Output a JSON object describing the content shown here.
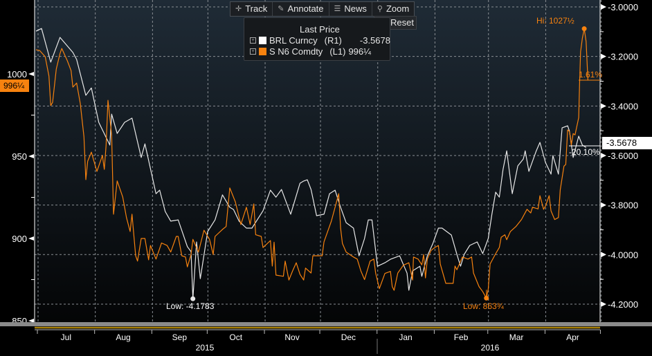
{
  "toolbar": {
    "track": "Track",
    "annotate": "Annotate",
    "news": "News",
    "zoom": "Zoom",
    "reset": "Reset"
  },
  "legend": {
    "title": "Last Price",
    "rows": [
      {
        "name": "BRL Curncy",
        "axis": "(R1)",
        "value": "-3.5678",
        "color": "#ffffff"
      },
      {
        "name": "S N6 Comdty",
        "axis": "(L1)",
        "value": "996¼",
        "color": "#f7820f"
      }
    ]
  },
  "annotations": {
    "hi": "Hi: 1027½",
    "low_brl": "Low: -4.1783",
    "low_soy": "Low: 863¾",
    "pct_soy": "1.61%",
    "pct_brl": "-20.10%",
    "last_brl": "-3.5678",
    "last_soy": "996¼"
  },
  "chart_data": {
    "type": "line",
    "x_unit": "days since 2015-07-01",
    "x_ticks": [
      {
        "label": "Jul",
        "day": 0
      },
      {
        "label": "Aug",
        "day": 31
      },
      {
        "label": "Sep",
        "day": 62
      },
      {
        "label": "Oct",
        "day": 92
      },
      {
        "label": "Nov",
        "day": 123
      },
      {
        "label": "Dec",
        "day": 153
      },
      {
        "label": "Jan",
        "day": 184
      },
      {
        "label": "Feb",
        "day": 215
      },
      {
        "label": "Mar",
        "day": 244
      },
      {
        "label": "Apr",
        "day": 275
      },
      {
        "label": "",
        "day": 305
      }
    ],
    "years": [
      {
        "label": "2015"
      },
      {
        "label": "2016"
      }
    ],
    "left_axis": {
      "ylim": [
        850,
        1000
      ],
      "ticks": [
        "850",
        "900",
        "950",
        "1000"
      ],
      "values": [
        850,
        900,
        950,
        1000
      ]
    },
    "right_axis": {
      "ylim": [
        -4.2,
        -3.0
      ],
      "ticks": [
        "-3.0000",
        "-3.2000",
        "-3.4000",
        "-3.6000",
        "-3.8000",
        "-4.0000",
        "-4.2000"
      ],
      "values": [
        -3.0,
        -3.2,
        -3.4,
        -3.6,
        -3.8,
        -4.0,
        -4.2
      ]
    },
    "grid": true,
    "series": [
      {
        "name": "BRL Curncy",
        "axis": "right",
        "color": "#e8e8e8",
        "points": [
          [
            0,
            -3.098
          ],
          [
            3,
            -3.087
          ],
          [
            8,
            -3.223
          ],
          [
            13,
            -3.123
          ],
          [
            20,
            -3.184
          ],
          [
            22,
            -3.212
          ],
          [
            27,
            -3.357
          ],
          [
            30,
            -3.327
          ],
          [
            34,
            -3.466
          ],
          [
            40,
            -3.558
          ],
          [
            41,
            -3.433
          ],
          [
            44,
            -3.511
          ],
          [
            48,
            -3.466
          ],
          [
            52,
            -3.449
          ],
          [
            57,
            -3.608
          ],
          [
            59,
            -3.553
          ],
          [
            65,
            -3.754
          ],
          [
            67,
            -3.74
          ],
          [
            70,
            -3.826
          ],
          [
            73,
            -3.865
          ],
          [
            77,
            -3.86
          ],
          [
            82,
            -3.968
          ],
          [
            84,
            -3.988
          ],
          [
            85,
            -4.1783
          ],
          [
            87,
            -3.949
          ],
          [
            89,
            -4.097
          ],
          [
            93,
            -3.907
          ],
          [
            97,
            -3.86
          ],
          [
            101,
            -3.759
          ],
          [
            105,
            -3.809
          ],
          [
            107,
            -3.818
          ],
          [
            110,
            -3.865
          ],
          [
            114,
            -3.893
          ],
          [
            117,
            -3.893
          ],
          [
            123,
            -3.823
          ],
          [
            127,
            -3.74
          ],
          [
            130,
            -3.768
          ],
          [
            133,
            -3.737
          ],
          [
            138,
            -3.837
          ],
          [
            143,
            -3.712
          ],
          [
            145,
            -3.703
          ],
          [
            147,
            -3.698
          ],
          [
            149,
            -3.737
          ],
          [
            152,
            -3.843
          ],
          [
            156,
            -3.837
          ],
          [
            159,
            -3.754
          ],
          [
            162,
            -3.74
          ],
          [
            165,
            -3.809
          ],
          [
            168,
            -3.871
          ],
          [
            172,
            -3.893
          ],
          [
            175,
            -4.005
          ],
          [
            178,
            -3.935
          ],
          [
            180,
            -3.86
          ],
          [
            182,
            -3.86
          ],
          [
            185,
            -4.047
          ],
          [
            189,
            -4.033
          ],
          [
            192,
            -4.019
          ],
          [
            197,
            -4.005
          ],
          [
            201,
            -4.075
          ],
          [
            202,
            -4.144
          ],
          [
            204,
            -4.066
          ],
          [
            208,
            -4.047
          ],
          [
            209,
            -4.088
          ],
          [
            212,
            -4.005
          ],
          [
            215,
            -3.955
          ],
          [
            218,
            -3.893
          ],
          [
            220,
            -3.893
          ],
          [
            225,
            -3.921
          ],
          [
            228,
            -3.999
          ],
          [
            230,
            -4.047
          ],
          [
            232,
            -3.999
          ],
          [
            235,
            -3.963
          ],
          [
            239,
            -3.949
          ],
          [
            242,
            -3.996
          ],
          [
            245,
            -3.935
          ],
          [
            247,
            -3.837
          ],
          [
            249,
            -3.748
          ],
          [
            251,
            -3.768
          ],
          [
            253,
            -3.656
          ],
          [
            255,
            -3.581
          ],
          [
            258,
            -3.754
          ],
          [
            261,
            -3.642
          ],
          [
            264,
            -3.614
          ],
          [
            265,
            -3.581
          ],
          [
            267,
            -3.664
          ],
          [
            271,
            -3.581
          ],
          [
            273,
            -3.547
          ],
          [
            276,
            -3.628
          ],
          [
            279,
            -3.675
          ],
          [
            280,
            -3.6
          ],
          [
            283,
            -3.675
          ],
          [
            285,
            -3.488
          ],
          [
            288,
            -3.48
          ],
          [
            289,
            -3.502
          ],
          [
            291,
            -3.608
          ],
          [
            294,
            -3.522
          ],
          [
            296,
            -3.558
          ],
          [
            298,
            -3.5678
          ]
        ]
      },
      {
        "name": "S N6 Comdty",
        "axis": "left",
        "color": "#f7820f",
        "points": [
          [
            0,
            1014.75
          ],
          [
            2,
            1014.25
          ],
          [
            5,
            1010.5
          ],
          [
            7,
            998.75
          ],
          [
            8,
            980.75
          ],
          [
            9,
            982.75
          ],
          [
            11,
            1003
          ],
          [
            13,
            1012.5
          ],
          [
            14,
            1015.5
          ],
          [
            17,
            1008
          ],
          [
            19,
            1002
          ],
          [
            20,
            992
          ],
          [
            22,
            994.5
          ],
          [
            24,
            982
          ],
          [
            26,
            961.75
          ],
          [
            27,
            935.75
          ],
          [
            28,
            947
          ],
          [
            30,
            952.5
          ],
          [
            33,
            940.75
          ],
          [
            36,
            950.5
          ],
          [
            37,
            942
          ],
          [
            38,
            956.75
          ],
          [
            39,
            984
          ],
          [
            41,
            963
          ],
          [
            42,
            914.75
          ],
          [
            44,
            935
          ],
          [
            47,
            925.25
          ],
          [
            49,
            912.75
          ],
          [
            51,
            904.25
          ],
          [
            52,
            914.75
          ],
          [
            54,
            889.5
          ],
          [
            55,
            886.25
          ],
          [
            57,
            900
          ],
          [
            59,
            900
          ],
          [
            61,
            887
          ],
          [
            62,
            895.75
          ],
          [
            65,
            887.5
          ],
          [
            68,
            897.25
          ],
          [
            71,
            895.75
          ],
          [
            73,
            891.75
          ],
          [
            76,
            901.25
          ],
          [
            77,
            901.25
          ],
          [
            79,
            889.5
          ],
          [
            81,
            888.75
          ],
          [
            82,
            882.75
          ],
          [
            84,
            890.25
          ],
          [
            85,
            899.5
          ],
          [
            88,
            891.75
          ],
          [
            91,
            905
          ],
          [
            94,
            899.5
          ],
          [
            96,
            890.25
          ],
          [
            97,
            901.25
          ],
          [
            101,
            905.5
          ],
          [
            103,
            907.25
          ],
          [
            105,
            930.75
          ],
          [
            108,
            922.25
          ],
          [
            111,
            908.5
          ],
          [
            114,
            919
          ],
          [
            116,
            908.5
          ],
          [
            118,
            921
          ],
          [
            119,
            902.25
          ],
          [
            122,
            901.25
          ],
          [
            123,
            894.5
          ],
          [
            127,
            898.75
          ],
          [
            128,
            883.25
          ],
          [
            129,
            897.75
          ],
          [
            130,
            877.75
          ],
          [
            134,
            877
          ],
          [
            135,
            886.25
          ],
          [
            137,
            874.75
          ],
          [
            139,
            880.25
          ],
          [
            141,
            885.25
          ],
          [
            143,
            878.25
          ],
          [
            145,
            874.75
          ],
          [
            146,
            882
          ],
          [
            149,
            879
          ],
          [
            150,
            889.5
          ],
          [
            153,
            889.5
          ],
          [
            155,
            889.5
          ],
          [
            156,
            898
          ],
          [
            160,
            910.5
          ],
          [
            164,
            927.25
          ],
          [
            165,
            906.25
          ],
          [
            166,
            897
          ],
          [
            168,
            891.75
          ],
          [
            172,
            888.75
          ],
          [
            174,
            887.5
          ],
          [
            176,
            880.25
          ],
          [
            178,
            875
          ],
          [
            181,
            886.25
          ],
          [
            183,
            887.5
          ],
          [
            184,
            879
          ],
          [
            186,
            869.5
          ],
          [
            189,
            878.75
          ],
          [
            192,
            880
          ],
          [
            193,
            870.75
          ],
          [
            194,
            868.5
          ],
          [
            196,
            879
          ],
          [
            199,
            883.75
          ],
          [
            202,
            885.25
          ],
          [
            204,
            874.75
          ],
          [
            204.5,
            888.75
          ],
          [
            207,
            887.5
          ],
          [
            209,
            884
          ],
          [
            210,
            890.25
          ],
          [
            211,
            876
          ],
          [
            212,
            887.5
          ],
          [
            214,
            892.75
          ],
          [
            216,
            894.5
          ],
          [
            218,
            895.75
          ],
          [
            219,
            884.5
          ],
          [
            222,
            872.75
          ],
          [
            226,
            872.75
          ],
          [
            227,
            883.25
          ],
          [
            228,
            881
          ],
          [
            231,
            888.75
          ],
          [
            234,
            887.5
          ],
          [
            236,
            888.75
          ],
          [
            237,
            879
          ],
          [
            240,
            870.75
          ],
          [
            242,
            867.75
          ],
          [
            244,
            863.75
          ],
          [
            245,
            869.25
          ],
          [
            246,
            884.5
          ],
          [
            249,
            890.75
          ],
          [
            251,
            894.5
          ],
          [
            252,
            900.75
          ],
          [
            254,
            902.25
          ],
          [
            255,
            899.25
          ],
          [
            257,
            904.25
          ],
          [
            260,
            907.25
          ],
          [
            263,
            911.5
          ],
          [
            266,
            917.75
          ],
          [
            268,
            915.5
          ],
          [
            269,
            919
          ],
          [
            272,
            918
          ],
          [
            273,
            926
          ],
          [
            275,
            917.75
          ],
          [
            276,
            919.75
          ],
          [
            278,
            926
          ],
          [
            279,
            916.75
          ],
          [
            281,
            911.5
          ],
          [
            283,
            912.75
          ],
          [
            284,
            929.5
          ],
          [
            286,
            944
          ],
          [
            287,
            945
          ],
          [
            288,
            966
          ],
          [
            289,
            965
          ],
          [
            290,
            956.75
          ],
          [
            291,
            963.75
          ],
          [
            292,
            963
          ],
          [
            294,
            973.5
          ],
          [
            294.5,
            994.5
          ],
          [
            295,
            1013.5
          ],
          [
            296,
            1021.75
          ],
          [
            297,
            1027.5
          ],
          [
            298,
            1019.75
          ],
          [
            299,
            996.25
          ]
        ]
      }
    ]
  }
}
